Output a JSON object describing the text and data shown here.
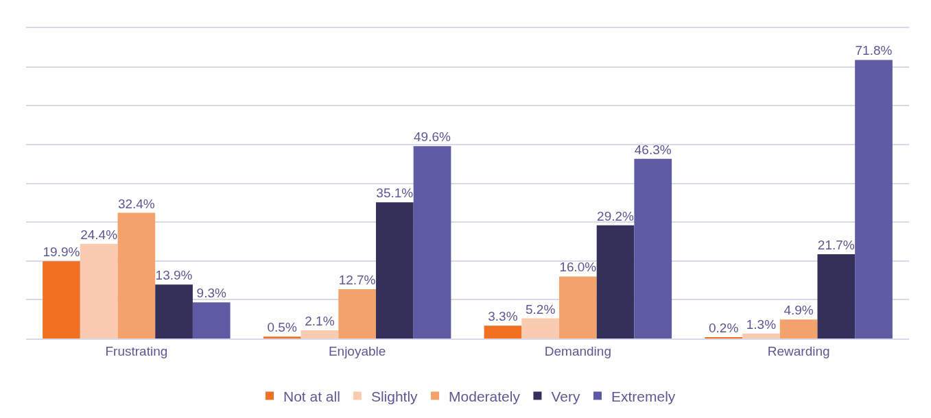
{
  "chart_data": {
    "type": "bar",
    "categories": [
      "Frustrating",
      "Enjoyable",
      "Demanding",
      "Rewarding"
    ],
    "series": [
      {
        "name": "Not at all",
        "color": "#f07122",
        "values": [
          19.9,
          0.5,
          3.3,
          0.2
        ],
        "value_labels": [
          "19.9%",
          "0.5%",
          "3.3%",
          "0.2%"
        ]
      },
      {
        "name": "Slightly",
        "color": "#f9cbb0",
        "values": [
          24.4,
          2.1,
          5.2,
          1.3
        ],
        "value_labels": [
          "24.4%",
          "2.1%",
          "5.2%",
          "1.3%"
        ]
      },
      {
        "name": "Moderately",
        "color": "#f4a26b",
        "values": [
          32.4,
          12.7,
          16.0,
          4.9
        ],
        "value_labels": [
          "32.4%",
          "12.7%",
          "16.0%",
          "4.9%"
        ]
      },
      {
        "name": "Very",
        "color": "#33305a",
        "values": [
          13.9,
          35.1,
          29.2,
          21.7
        ],
        "value_labels": [
          "13.9%",
          "35.1%",
          "29.2%",
          "21.7%"
        ]
      },
      {
        "name": "Extremely",
        "color": "#5e5aa4",
        "values": [
          9.3,
          49.6,
          46.3,
          71.8
        ],
        "value_labels": [
          "9.3%",
          "49.6%",
          "46.3%",
          "71.8%"
        ]
      }
    ],
    "ylim": [
      0,
      80
    ],
    "yticks": [
      {
        "value": 0,
        "label": null
      },
      {
        "value": 10,
        "label": null
      },
      {
        "value": 20,
        "label": null
      },
      {
        "value": 30,
        "label": null
      },
      {
        "value": 40,
        "label": null
      },
      {
        "value": 50,
        "label": null
      },
      {
        "value": 60,
        "label": null
      },
      {
        "value": 70,
        "label": null
      },
      {
        "value": 80,
        "label": null
      }
    ],
    "grid": "y",
    "legend": "bottom",
    "tick_labels": "x"
  }
}
